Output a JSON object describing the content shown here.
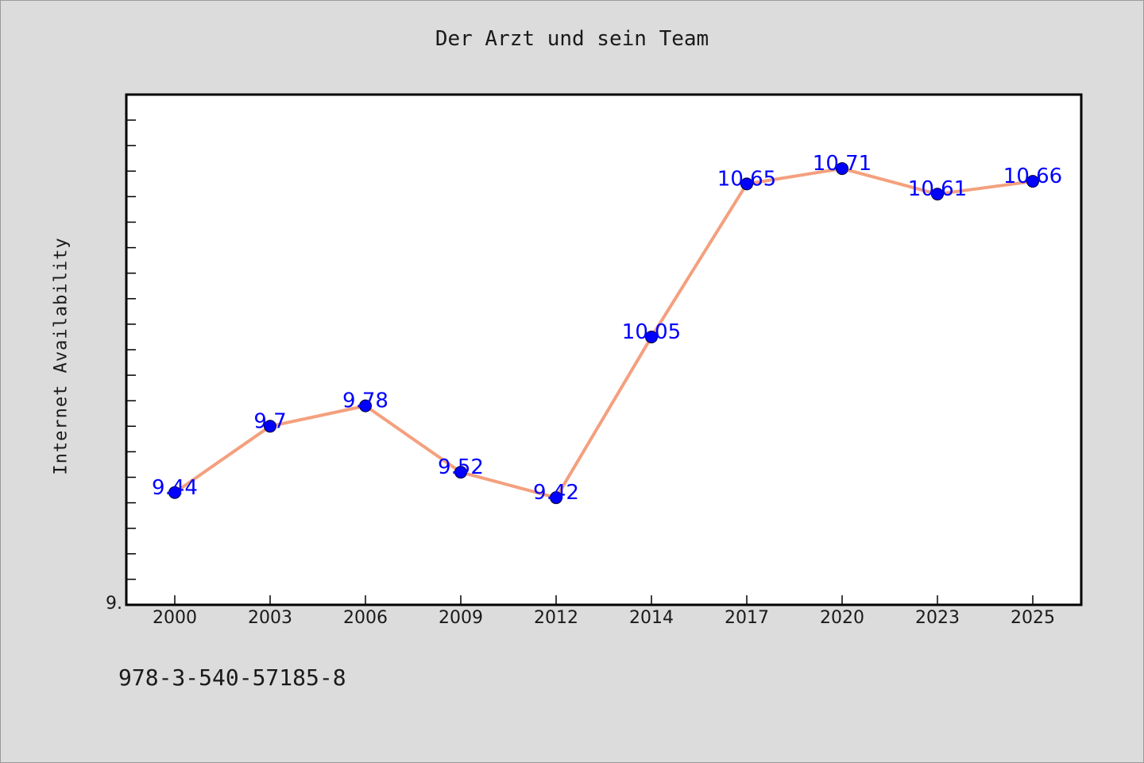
{
  "chart_data": {
    "type": "line",
    "title": "Der Arzt und sein Team",
    "xlabel": "",
    "ylabel": "Internet Availability",
    "categories": [
      "2000",
      "2003",
      "2006",
      "2009",
      "2012",
      "2014",
      "2017",
      "2020",
      "2023",
      "2025"
    ],
    "series": [
      {
        "values": [
          9.44,
          9.7,
          9.78,
          9.52,
          9.42,
          10.05,
          10.65,
          10.71,
          10.61,
          10.66
        ],
        "data_labels": [
          "9.44",
          "9.7",
          "9.78",
          "9.52",
          "9.42",
          "10.05",
          "10.65",
          "10.71",
          "10.61",
          "10.66"
        ],
        "line_color": "#f4a07e",
        "marker_color": "#0000ff",
        "label_color": "#0000ff"
      }
    ],
    "y_tick_labels": [
      "9."
    ],
    "ylim": [
      9.0,
      11.0
    ],
    "grid": false,
    "legend": "none"
  },
  "footer_note": "978-3-540-57185-8",
  "colors": {
    "background": "#dcdcdc",
    "plot_background": "#ffffff",
    "axis": "#000000"
  }
}
